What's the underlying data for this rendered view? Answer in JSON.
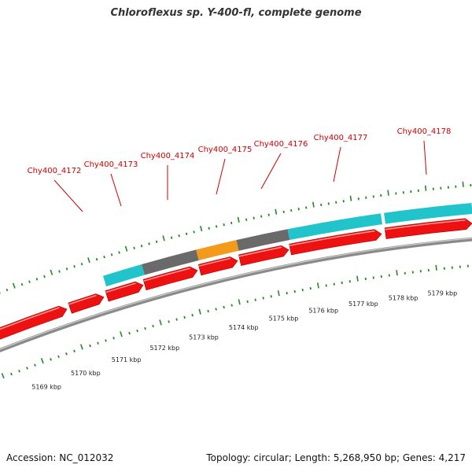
{
  "title": "Chloroflexus sp. Y-400-fl, complete genome",
  "footer": {
    "accession": "Accession: NC_012032",
    "info": "Topology: circular; Length: 5,268,950 bp; Genes: 4,217"
  },
  "colors": {
    "cds": "#ee1111",
    "cds_light": "#ff9999",
    "cds_dark": "#a80000",
    "gene_cyan": "#22c4cc",
    "gene_gray": "#6a6a6a",
    "gene_orange": "#f49a1a",
    "backbone": "#8a8a8a",
    "tick": "#228b22",
    "label": "#cc0000",
    "scale_text": "#222222"
  },
  "genes": [
    {
      "name": "Chy400_4172",
      "label": "Chy400_4172"
    },
    {
      "name": "Chy400_4173",
      "label": "Chy400_4173"
    },
    {
      "name": "Chy400_4174",
      "label": "Chy400_4174"
    },
    {
      "name": "Chy400_4175",
      "label": "Chy400_4175"
    },
    {
      "name": "Chy400_4176",
      "label": "Chy400_4176"
    },
    {
      "name": "Chy400_4177",
      "label": "Chy400_4177"
    },
    {
      "name": "Chy400_4178",
      "label": "Chy400_4178"
    }
  ],
  "scale": {
    "labels": [
      "5169 kbp",
      "5170 kbp",
      "5171 kbp",
      "5172 kbp",
      "5173 kbp",
      "5174 kbp",
      "5175 kbp",
      "5176 kbp",
      "5177 kbp",
      "5178 kbp",
      "5179 kbp"
    ]
  }
}
